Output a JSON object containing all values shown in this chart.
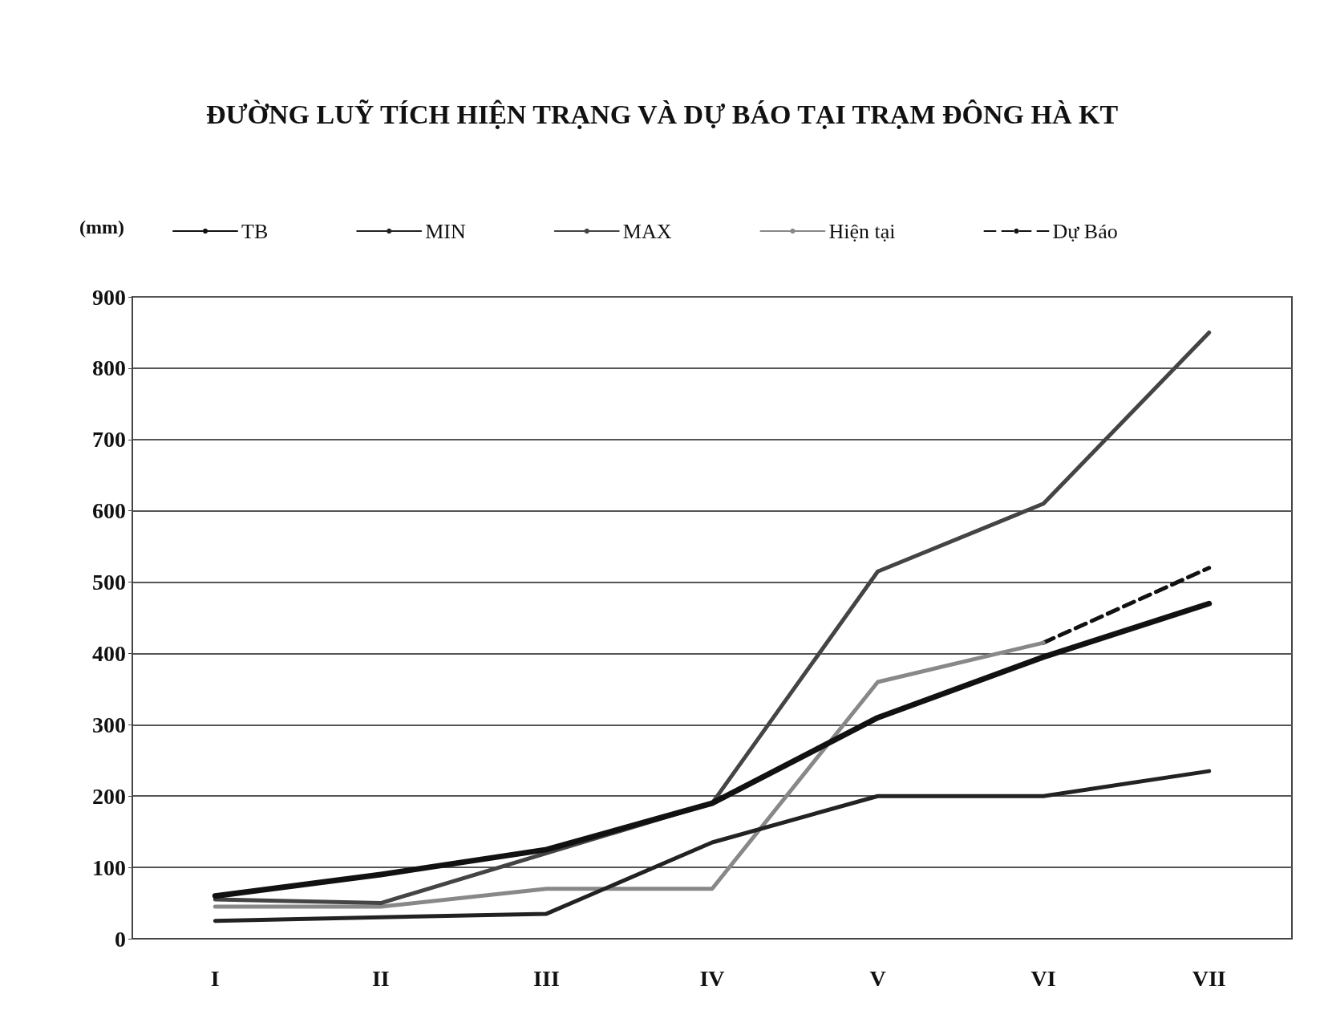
{
  "chart_data": {
    "type": "line",
    "title": "ĐƯỜNG LUỸ TÍCH HIỆN TRẠNG VÀ DỰ BÁO TẠI TRẠM ĐÔNG HÀ KT",
    "ylabel": "(mm)",
    "categories": [
      "I",
      "II",
      "III",
      "IV",
      "V",
      "VI",
      "VII"
    ],
    "series": [
      {
        "name": "TB",
        "color": "#111111",
        "values": [
          60,
          90,
          125,
          190,
          310,
          395,
          470
        ]
      },
      {
        "name": "MIN",
        "color": "#222222",
        "values": [
          25,
          30,
          35,
          135,
          200,
          200,
          235
        ]
      },
      {
        "name": "MAX",
        "color": "#444444",
        "values": [
          55,
          50,
          120,
          190,
          515,
          610,
          850
        ]
      },
      {
        "name": "Hiện tại",
        "color": "#888888",
        "values": [
          45,
          45,
          70,
          70,
          360,
          415,
          null
        ]
      },
      {
        "name": "Dự Báo",
        "color": "#111111",
        "line_style": "dashed",
        "values": [
          null,
          null,
          null,
          null,
          null,
          415,
          520
        ]
      }
    ],
    "ylim": [
      0,
      900
    ],
    "yticks": [
      0,
      100,
      200,
      300,
      400,
      500,
      600,
      700,
      800,
      900
    ],
    "grid": "y",
    "legend": "top",
    "marker": "none",
    "line_style": "solid"
  }
}
